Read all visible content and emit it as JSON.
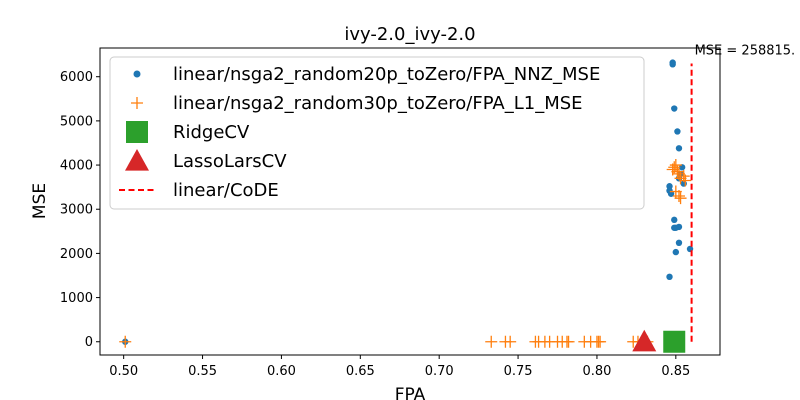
{
  "chart_data": {
    "type": "scatter",
    "title": "ivy-2.0_ivy-2.0",
    "xlabel": "FPA",
    "ylabel": "MSE",
    "xlim": [
      0.485,
      0.878
    ],
    "ylim": [
      -300,
      6650
    ],
    "xticks": [
      0.5,
      0.55,
      0.6,
      0.65,
      0.7,
      0.75,
      0.8,
      0.85
    ],
    "xtick_labels": [
      "0.50",
      "0.55",
      "0.60",
      "0.65",
      "0.70",
      "0.75",
      "0.80",
      "0.85"
    ],
    "yticks": [
      0,
      1000,
      2000,
      3000,
      4000,
      5000,
      6000
    ],
    "ytick_labels": [
      "0",
      "1000",
      "2000",
      "3000",
      "4000",
      "5000",
      "6000"
    ],
    "grid": false,
    "legend_position": "upper-left",
    "series": [
      {
        "name": "linear/nsga2_random20p_toZero/FPA_NNZ_MSE",
        "marker": "dot",
        "color": "#1f77b4",
        "x": [
          0.501,
          0.848,
          0.848,
          0.849,
          0.851,
          0.852,
          0.854,
          0.853,
          0.852,
          0.855,
          0.846,
          0.846,
          0.847,
          0.849,
          0.852,
          0.849,
          0.85,
          0.852,
          0.859,
          0.85,
          0.846
        ],
        "y": [
          0,
          6320,
          6280,
          5280,
          4760,
          4380,
          3950,
          3800,
          3700,
          3580,
          3520,
          3420,
          3350,
          2760,
          2600,
          2580,
          2580,
          2240,
          2100,
          2030,
          1470
        ]
      },
      {
        "name": "linear/nsga2_random30p_toZero/FPA_L1_MSE",
        "marker": "plus",
        "color": "#ff7f0e",
        "x": [
          0.501,
          0.733,
          0.742,
          0.745,
          0.761,
          0.763,
          0.767,
          0.77,
          0.775,
          0.778,
          0.781,
          0.782,
          0.792,
          0.796,
          0.8,
          0.801,
          0.802,
          0.823,
          0.826,
          0.829,
          0.832,
          0.848,
          0.849,
          0.85,
          0.851,
          0.852,
          0.853,
          0.855,
          0.856,
          0.85,
          0.852,
          0.853
        ],
        "y": [
          0,
          0,
          0,
          0,
          0,
          0,
          0,
          0,
          0,
          0,
          0,
          0,
          0,
          0,
          0,
          0,
          0,
          0,
          0,
          0,
          0,
          3900,
          3950,
          4000,
          3850,
          3800,
          3700,
          3750,
          3650,
          3400,
          3300,
          3250
        ]
      },
      {
        "name": "RidgeCV",
        "marker": "square",
        "color": "#2ca02c",
        "x": [
          0.849
        ],
        "y": [
          0
        ]
      },
      {
        "name": "LassoLarsCV",
        "marker": "triangle",
        "color": "#d62728",
        "x": [
          0.83
        ],
        "y": [
          0
        ]
      },
      {
        "name": "linear/CoDE",
        "marker": "dashed-line",
        "color": "#ff0000",
        "x": [
          0.86,
          0.86
        ],
        "y": [
          0,
          6300
        ]
      }
    ],
    "annotations": [
      {
        "text": "MSE = 258815.",
        "x": 0.86,
        "y": 6480
      }
    ]
  }
}
